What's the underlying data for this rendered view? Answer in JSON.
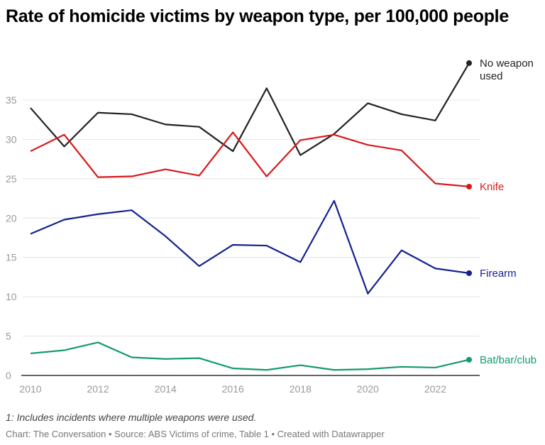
{
  "chart_data": {
    "type": "line",
    "title": "Rate of homicide victims by weapon type, per 100,000 people",
    "xlabel": "",
    "ylabel": "",
    "x": [
      2010,
      2011,
      2012,
      2013,
      2014,
      2015,
      2016,
      2017,
      2018,
      2019,
      2020,
      2021,
      2022,
      2023
    ],
    "x_ticks": [
      "2010",
      "2012",
      "2014",
      "2016",
      "2018",
      "2020",
      "2022"
    ],
    "y_ticks": [
      "0",
      "5",
      "10",
      "15",
      "20",
      "25",
      "30",
      "35"
    ],
    "ylim": [
      0,
      40
    ],
    "grid": "horizontal",
    "legend": "direct labels at line ends (right)",
    "series": [
      {
        "name": "No weapon used",
        "label_lines": [
          "No weapon",
          "used"
        ],
        "color": "#222222",
        "values": [
          34.0,
          29.1,
          33.4,
          33.2,
          31.9,
          31.6,
          28.5,
          36.5,
          28.0,
          30.7,
          34.6,
          33.2,
          32.4,
          39.7
        ]
      },
      {
        "name": "Knife",
        "color": "#d7191c",
        "values": [
          28.5,
          30.6,
          25.2,
          25.3,
          26.2,
          25.4,
          30.9,
          25.3,
          29.9,
          30.6,
          29.3,
          28.6,
          24.4,
          24.0
        ]
      },
      {
        "name": "Firearm",
        "color": "#15218f",
        "values": [
          18.0,
          19.8,
          20.5,
          21.0,
          17.7,
          13.9,
          16.6,
          16.5,
          14.4,
          22.2,
          10.4,
          15.9,
          13.6,
          13.0
        ]
      },
      {
        "name": "Bat/bar/club",
        "color": "#139a6c",
        "values": [
          2.8,
          3.2,
          4.2,
          2.3,
          2.1,
          2.2,
          0.9,
          0.7,
          1.3,
          0.7,
          0.8,
          1.1,
          1.0,
          2.0
        ]
      }
    ]
  },
  "footnote": "1: Includes incidents where multiple weapons were used.",
  "credit": "Chart: The Conversation • Source: ABS Victims of crime, Table 1 • Created with Datawrapper"
}
